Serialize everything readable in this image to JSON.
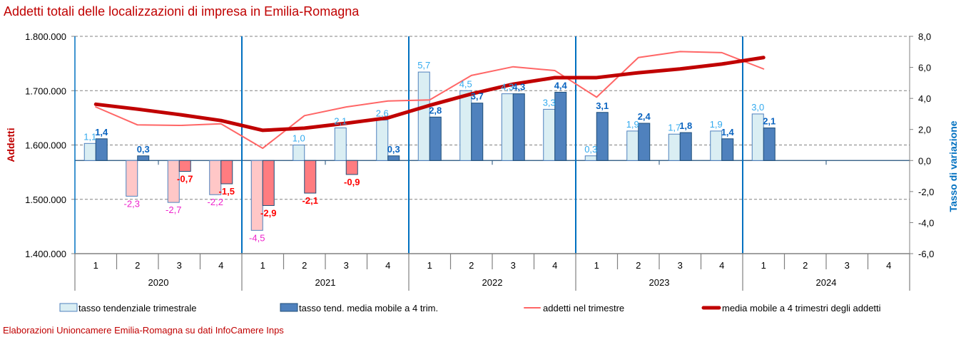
{
  "title": "Addetti totali delle localizzazioni di impresa in Emilia-Romagna",
  "footer": "Elaborazioni Unioncamere Emilia-Romagna su dati InfoCamere Inps",
  "colors": {
    "title": "#c00000",
    "bar_light_pos": "#daeef3",
    "bar_light_neg": "#ffc7c7",
    "bar_dark_pos": "#4f81bd",
    "bar_dark_neg": "#ff7c80",
    "bar_border": "#1f4e79",
    "line_thin": "#ff6666",
    "line_thick": "#c00000",
    "label_light_pos": "#33aaee",
    "label_light_neg": "#ee22cc",
    "label_dark_pos": "#0a64c0",
    "label_dark_neg": "#ff0000",
    "year_sep": "#0070c0",
    "right_axis_title": "#0070c0"
  },
  "chart_data": {
    "type": "bar",
    "title": "Addetti totali delle localizzazioni di impresa in Emilia-Romagna",
    "ylabel": "Addetti",
    "y2label": "Tasso di variazione",
    "ylim": [
      1400000,
      1800000
    ],
    "y2lim": [
      -6,
      8
    ],
    "yticks": [
      "1.400.000",
      "1.500.000",
      "1.600.000",
      "1.700.000",
      "1.800.000"
    ],
    "y2ticks": [
      "-6,0",
      "-4,0",
      "-2,0",
      "0,0",
      "2,0",
      "4,0",
      "6,0",
      "8,0"
    ],
    "grid": true,
    "legend_position": "bottom",
    "years": [
      "2020",
      "2021",
      "2022",
      "2023",
      "2024"
    ],
    "quarters": [
      "1",
      "2",
      "3",
      "4"
    ],
    "categories": [
      "2020-1",
      "2020-2",
      "2020-3",
      "2020-4",
      "2021-1",
      "2021-2",
      "2021-3",
      "2021-4",
      "2022-1",
      "2022-2",
      "2022-3",
      "2022-4",
      "2023-1",
      "2023-2",
      "2023-3",
      "2023-4",
      "2024-1",
      "2024-2",
      "2024-3",
      "2024-4"
    ],
    "series": [
      {
        "name": "tasso tendenziale trimestrale",
        "type": "bar",
        "axis": "right",
        "values": [
          1.1,
          -2.3,
          -2.7,
          -2.2,
          -4.5,
          1.0,
          2.1,
          2.6,
          5.7,
          4.5,
          4.3,
          3.3,
          0.3,
          1.9,
          1.7,
          1.9,
          3.0,
          null,
          null,
          null
        ],
        "labels": [
          "1,1",
          "-2,3",
          "-2,7",
          "-2,2",
          "-4,5",
          "1,0",
          "2,1",
          "2,6",
          "5,7",
          "4,5",
          "4,3",
          "3,3",
          "0,3",
          "1,9",
          "1,7",
          "1,9",
          "3,0",
          null,
          null,
          null
        ]
      },
      {
        "name": "tasso tend. media mobile a 4 trim.",
        "type": "bar",
        "axis": "right",
        "values": [
          1.4,
          0.3,
          -0.7,
          -1.5,
          -2.9,
          -2.1,
          -0.9,
          0.3,
          2.8,
          3.7,
          4.3,
          4.4,
          3.1,
          2.4,
          1.8,
          1.4,
          2.1,
          null,
          null,
          null
        ],
        "labels": [
          "1,4",
          "0,3",
          "-0,7",
          "-1,5",
          "-2,9",
          "-2,1",
          "-0,9",
          "0,3",
          "2,8",
          "3,7",
          "4,3",
          "4,4",
          "3,1",
          "2,4",
          "1,8",
          "1,4",
          "2,1",
          null,
          null,
          null
        ]
      },
      {
        "name": "addetti nel trimestre",
        "type": "line",
        "axis": "left",
        "values": [
          1670000,
          1637000,
          1636000,
          1639000,
          1594000,
          1654000,
          1670000,
          1681000,
          1683000,
          1728000,
          1744000,
          1737000,
          1688000,
          1761000,
          1772000,
          1770000,
          1740000,
          null,
          null,
          null
        ]
      },
      {
        "name": "media mobile a 4 trimestri degli addetti",
        "type": "line",
        "axis": "left",
        "values": [
          1675000,
          1666000,
          1656000,
          1645000,
          1627000,
          1631000,
          1640000,
          1650000,
          1673000,
          1694000,
          1712000,
          1724000,
          1724000,
          1733000,
          1740000,
          1749000,
          1761000,
          null,
          null,
          null
        ]
      }
    ]
  }
}
